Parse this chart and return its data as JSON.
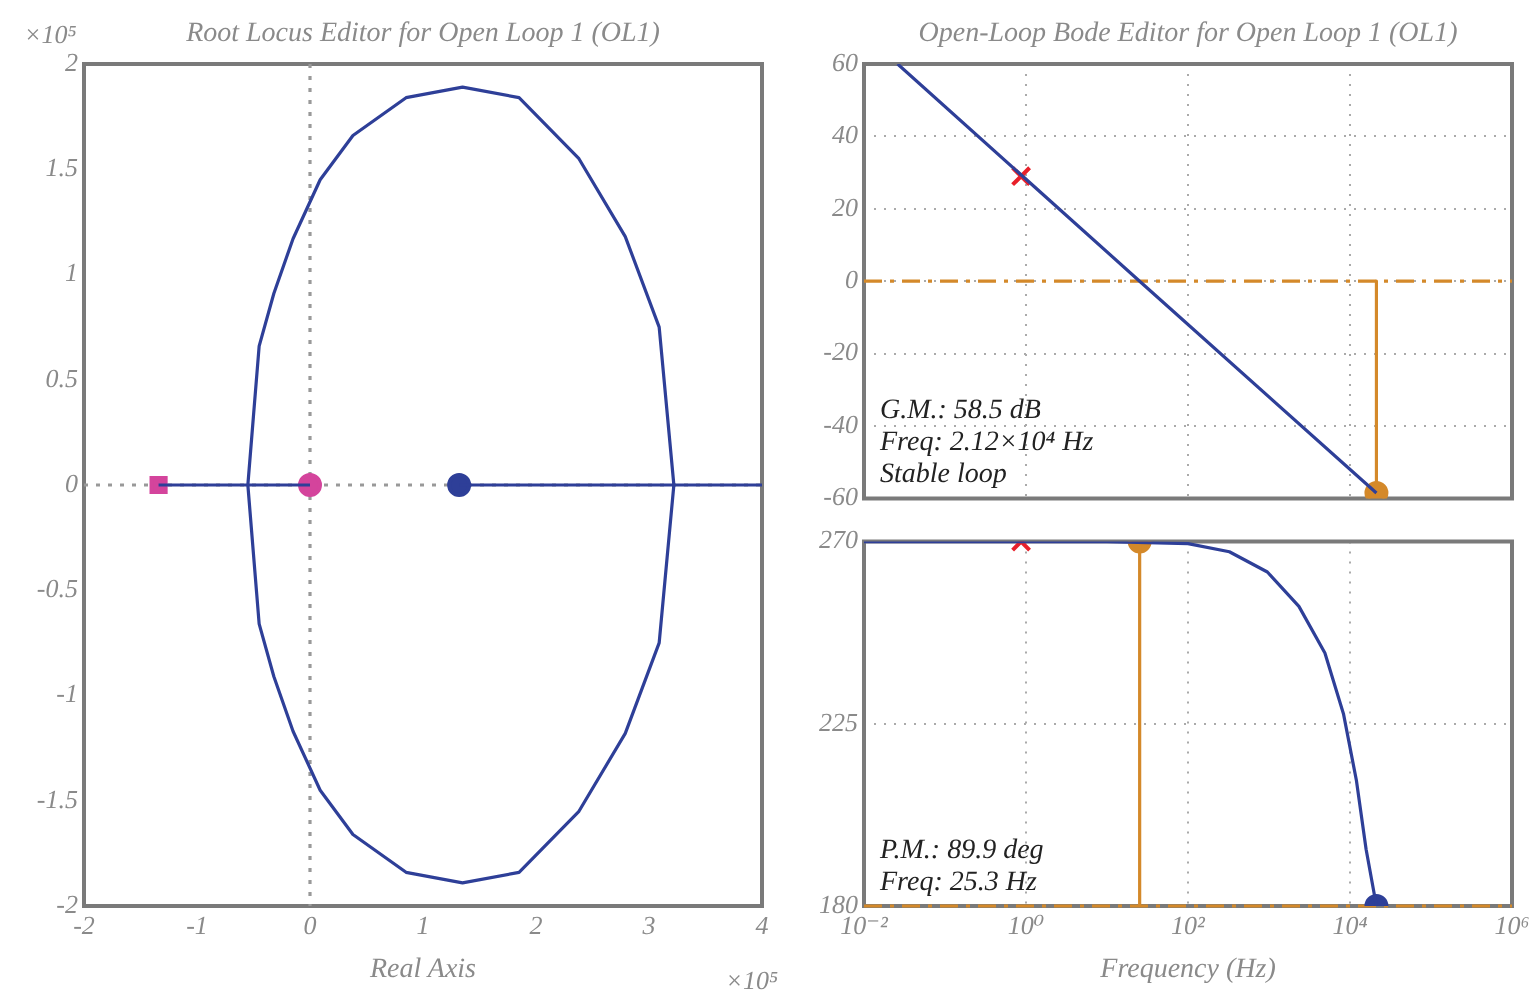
{
  "chart_data": [
    {
      "type": "line",
      "title": "Root Locus Editor for Open Loop 1 (OL1)",
      "xlabel": "Real Axis",
      "xlim": [
        -2,
        4
      ],
      "xticks": [
        -2,
        -1,
        0,
        1,
        2,
        3,
        4
      ],
      "ylim": [
        -2,
        2
      ],
      "yticks": [
        -2,
        -1.5,
        -1,
        -0.5,
        0,
        0.5,
        1,
        1.5,
        2
      ],
      "annotations": [
        "×10⁵",
        "×10⁵"
      ],
      "ref_lines": [
        {
          "axis": "x",
          "value": 0,
          "color": "#999999",
          "line_style": "dotted"
        },
        {
          "axis": "y",
          "value": 0,
          "color": "#999999",
          "line_style": "dotted"
        }
      ],
      "series": [
        {
          "color": "#2e3f98",
          "x": [
            -1.34,
            -0.55,
            -0.45,
            -0.32,
            -0.15,
            0.09,
            0.38,
            0.85,
            1.35,
            1.85,
            2.38,
            2.79,
            3.09,
            3.22,
            4
          ],
          "values": [
            0,
            0,
            0.66,
            0.91,
            1.17,
            1.45,
            1.66,
            1.84,
            1.89,
            1.84,
            1.55,
            1.18,
            0.75,
            0,
            0
          ]
        },
        {
          "color": "#2e3f98",
          "x": [
            0,
            -0.55,
            -0.45,
            -0.32,
            -0.15,
            0.09,
            0.38,
            0.85,
            1.35,
            1.85,
            2.38,
            2.79,
            3.09,
            3.22,
            1.32
          ],
          "values": [
            0,
            0,
            -0.66,
            -0.91,
            -1.17,
            -1.45,
            -1.66,
            -1.84,
            -1.89,
            -1.84,
            -1.55,
            -1.18,
            -0.75,
            0,
            0
          ]
        },
        {
          "type": "scatter",
          "marker": "square",
          "color": "#d4449c",
          "x": [
            -1.34
          ],
          "values": [
            0
          ]
        },
        {
          "type": "scatter",
          "marker": "circle",
          "color": "#d4449c",
          "x": [
            0
          ],
          "values": [
            0
          ]
        },
        {
          "type": "scatter",
          "marker": "circle",
          "color": "#2e3f98",
          "x": [
            1.32
          ],
          "values": [
            0
          ]
        }
      ]
    },
    {
      "type": "line",
      "title": "Open-Loop Bode Editor for Open Loop 1 (OL1)",
      "log": "x",
      "grid": true,
      "tick_labels": "y",
      "xlim": [
        0.01,
        1000000
      ],
      "xticks": [
        0.01,
        1,
        100,
        10000,
        1000000
      ],
      "ylim": [
        -60,
        60
      ],
      "yticks": [
        -60,
        -40,
        -20,
        0,
        20,
        40,
        60
      ],
      "annotations": [
        "G.M.: 58.5 dB",
        "Freq: 2.12×10⁴ Hz",
        "Stable loop"
      ],
      "ref_lines": [
        {
          "axis": "y",
          "value": 0,
          "color": "#d4892a",
          "line_style": "dashed"
        }
      ],
      "series": [
        {
          "color": "#2e3f98",
          "x": [
            0.026,
            25.3,
            21200
          ],
          "values": [
            60,
            0,
            -58.5
          ]
        },
        {
          "color": "#d4892a",
          "x": [
            21200,
            21200
          ],
          "values": [
            0,
            -58.5
          ]
        },
        {
          "type": "scatter",
          "marker": "circle",
          "color": "#d4892a",
          "x": [
            21200
          ],
          "values": [
            -58.5
          ]
        },
        {
          "type": "scatter",
          "marker": "cross",
          "color": "#e8202a",
          "x": [
            0.87
          ],
          "values": [
            29
          ]
        }
      ]
    },
    {
      "type": "line",
      "log": "x",
      "grid": true,
      "xlabel": "Frequency (Hz)",
      "xlim": [
        0.01,
        1000000
      ],
      "xticks": [
        {
          "value": 0.01,
          "label": "10⁻²"
        },
        {
          "value": 1,
          "label": "10⁰"
        },
        {
          "value": 100,
          "label": "10²"
        },
        {
          "value": 10000,
          "label": "10⁴"
        },
        {
          "value": 1000000,
          "label": "10⁶"
        }
      ],
      "ylim": [
        180,
        270
      ],
      "yticks": [
        180,
        225,
        270
      ],
      "annotations": [
        "P.M.: 89.9 deg",
        "Freq: 25.3 Hz"
      ],
      "ref_lines": [
        {
          "axis": "y",
          "value": 180,
          "color": "#d4892a",
          "line_style": "dashed"
        }
      ],
      "series": [
        {
          "color": "#2e3f98",
          "x": [
            0.01,
            1,
            10,
            100,
            324,
            955,
            2340,
            4900,
            8300,
            12000,
            15800,
            21200
          ],
          "values": [
            270,
            270,
            270,
            269.5,
            267.5,
            262.5,
            254,
            242.5,
            227.5,
            211,
            194,
            180
          ]
        },
        {
          "color": "#d4892a",
          "x": [
            25.3,
            25.3
          ],
          "values": [
            180,
            270
          ]
        },
        {
          "type": "scatter",
          "marker": "circle",
          "color": "#d4892a",
          "x": [
            25.3
          ],
          "values": [
            270
          ]
        },
        {
          "type": "scatter",
          "marker": "cross",
          "color": "#e8202a",
          "x": [
            0.87
          ],
          "values": [
            270
          ]
        },
        {
          "type": "scatter",
          "marker": "circle",
          "color": "#2e3f98",
          "x": [
            21200
          ],
          "values": [
            180
          ]
        }
      ]
    }
  ]
}
